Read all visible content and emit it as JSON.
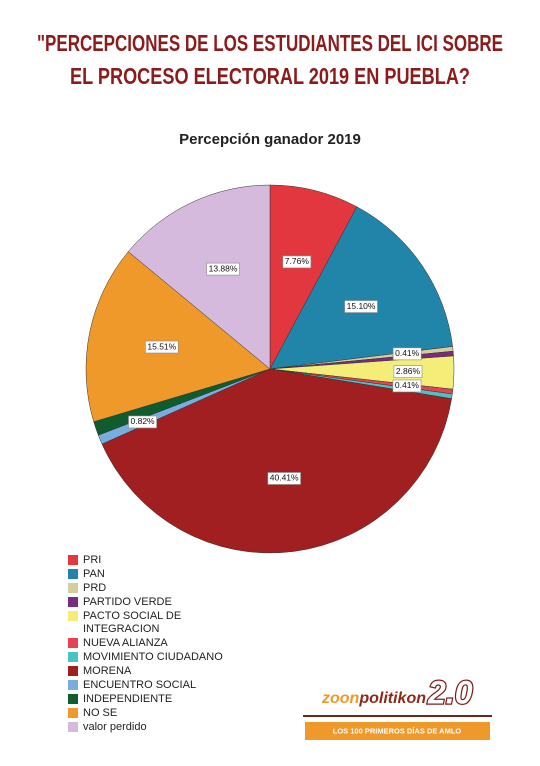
{
  "header": {
    "title_lines": [
      "\"PERCEPCIONES DE LOS ESTUDIANTES DEL ICI SOBRE",
      "EL PROCESO ELECTORAL 2019 EN PUEBLA?"
    ]
  },
  "chart_data": {
    "type": "pie",
    "title": "Percepción ganador 2019",
    "categories": [
      "PRI",
      "PAN",
      "PRD",
      "PARTIDO VERDE",
      "PACTO SOCIAL DE INTEGRACION",
      "NUEVA ALIANZA",
      "MOVIMIENTO CIUDADANO",
      "MORENA",
      "ENCUENTRO SOCIAL",
      "INDEPENDIENTE",
      "NO SE",
      "valor perdido"
    ],
    "values": [
      7.76,
      15.1,
      0.41,
      0.41,
      2.86,
      0.41,
      0.41,
      40.41,
      0.82,
      1.22,
      15.51,
      13.88
    ],
    "value_labels": [
      "7.76%",
      "15.10%",
      "0.41%",
      null,
      "2.86%",
      "0.41%",
      null,
      "40.41%",
      "0.82%",
      null,
      "15.51%",
      "13.88%"
    ],
    "colors": [
      "#e3373f",
      "#2185a9",
      "#d5cd9e",
      "#7a2c7d",
      "#f4ee78",
      "#e6434f",
      "#4bc3c6",
      "#a11f20",
      "#78ade0",
      "#0f5c2f",
      "#f0992b",
      "#d6bade"
    ],
    "legend": "bottom-left"
  },
  "branding": {
    "name_prefix": "zoon",
    "name": "politikon",
    "version": "2.0",
    "tagline": "LOS 100 PRIMEROS DÍAS DE AMLO"
  }
}
